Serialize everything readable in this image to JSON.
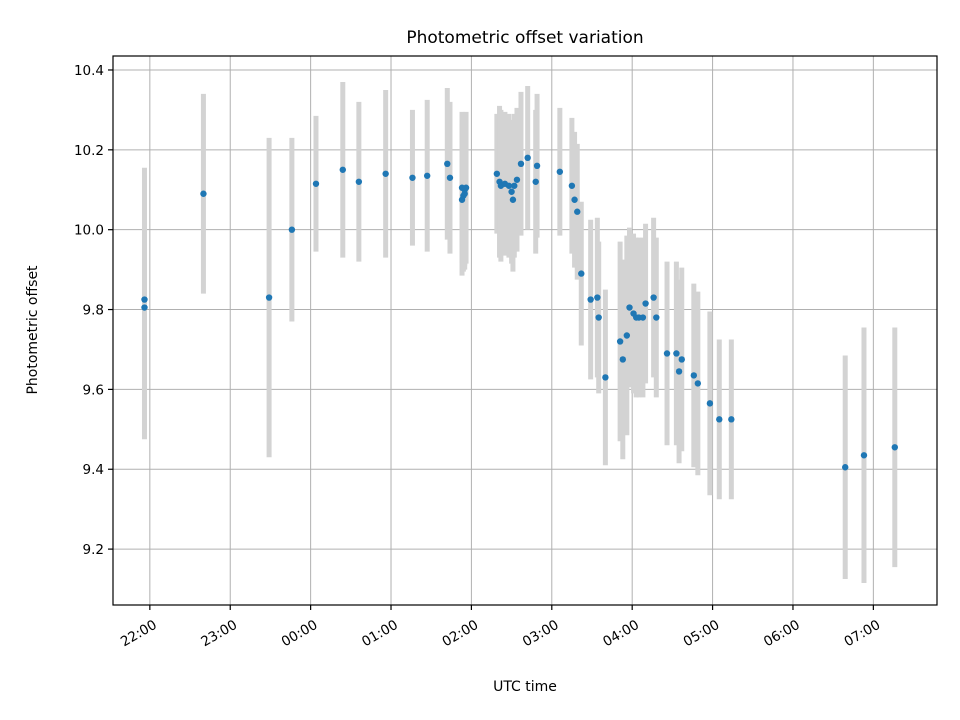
{
  "chart_data": {
    "type": "scatter",
    "title": "Photometric offset variation",
    "xlabel": "UTC time",
    "ylabel": "Photometric offset",
    "grid": true,
    "x_range_minutes": [
      -147.5,
      467.5
    ],
    "ylim": [
      9.06,
      10.435
    ],
    "x_ticks": [
      "22:00",
      "23:00",
      "00:00",
      "01:00",
      "02:00",
      "03:00",
      "04:00",
      "05:00",
      "06:00",
      "07:00"
    ],
    "x_tick_minutes": [
      -120,
      -60,
      0,
      60,
      120,
      180,
      240,
      300,
      360,
      420
    ],
    "y_ticks": [
      9.2,
      9.4,
      9.6,
      9.8,
      10.0,
      10.2,
      10.4
    ],
    "y_tick_labels": [
      "9.2",
      "9.4",
      "9.6",
      "9.8",
      "10.0",
      "10.2",
      "10.4"
    ],
    "colors": {
      "point": "#1f77b4",
      "errorbar": "#d3d3d3",
      "grid": "#b0b0b0"
    },
    "series": [
      {
        "t": [
          "21:56",
          "21:56",
          "22:40",
          "23:29",
          "23:46",
          "00:04",
          "00:24",
          "00:36",
          "00:56",
          "01:16",
          "01:27",
          "01:42",
          "01:44",
          "01:53",
          "01:53",
          "01:54",
          "01:55",
          "01:55",
          "01:56",
          "02:19",
          "02:21",
          "02:22",
          "02:25",
          "02:28",
          "02:30",
          "02:31",
          "02:32",
          "02:34",
          "02:37",
          "02:42",
          "02:48",
          "02:49",
          "03:06",
          "03:15",
          "03:17",
          "03:19",
          "03:22",
          "03:29",
          "03:34",
          "03:35",
          "03:40",
          "03:51",
          "03:53",
          "03:56",
          "03:58",
          "04:01",
          "04:03",
          "04:05",
          "04:08",
          "04:10",
          "04:16",
          "04:18",
          "04:26",
          "04:33",
          "04:35",
          "04:37",
          "04:46",
          "04:49",
          "04:58",
          "05:05",
          "05:14",
          "06:39",
          "06:53",
          "07:16"
        ],
        "y": [
          9.825,
          9.805,
          10.09,
          9.83,
          10.0,
          10.115,
          10.15,
          10.12,
          10.14,
          10.13,
          10.135,
          10.165,
          10.13,
          10.075,
          10.105,
          10.085,
          10.1,
          10.09,
          10.105,
          10.14,
          10.12,
          10.11,
          10.115,
          10.11,
          10.095,
          10.075,
          10.11,
          10.125,
          10.165,
          10.18,
          10.12,
          10.16,
          10.145,
          10.11,
          10.075,
          10.045,
          9.89,
          9.825,
          9.83,
          9.78,
          9.63,
          9.72,
          9.675,
          9.735,
          9.805,
          9.79,
          9.78,
          9.78,
          9.78,
          9.815,
          9.83,
          9.78,
          9.69,
          9.69,
          9.645,
          9.675,
          9.635,
          9.615,
          9.565,
          9.525,
          9.525,
          9.405,
          9.435,
          9.455
        ],
        "err": [
          0.33,
          0.33,
          0.25,
          0.4,
          0.23,
          0.17,
          0.22,
          0.2,
          0.21,
          0.17,
          0.19,
          0.19,
          0.19,
          0.19,
          0.19,
          0.19,
          0.19,
          0.19,
          0.19,
          0.15,
          0.19,
          0.19,
          0.18,
          0.18,
          0.18,
          0.18,
          0.18,
          0.18,
          0.18,
          0.18,
          0.18,
          0.18,
          0.16,
          0.17,
          0.17,
          0.17,
          0.18,
          0.2,
          0.2,
          0.19,
          0.22,
          0.25,
          0.25,
          0.25,
          0.2,
          0.2,
          0.2,
          0.2,
          0.2,
          0.2,
          0.2,
          0.2,
          0.23,
          0.23,
          0.23,
          0.23,
          0.23,
          0.23,
          0.23,
          0.2,
          0.2,
          0.28,
          0.32,
          0.3
        ]
      }
    ]
  }
}
